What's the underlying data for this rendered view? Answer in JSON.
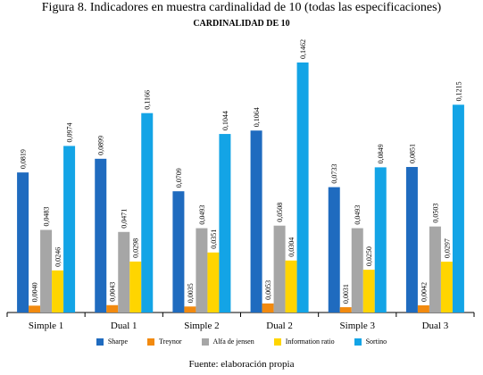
{
  "figure_title": "Figura 8. Indicadores en muestra cardinalidad de 10 (todas las especificaciones)",
  "source_note": "Fuente: elaboración propia",
  "colors": {
    "Sharpe": "#1f6bbf",
    "Treynor": "#f28a0f",
    "Alfa de jensen": "#a6a6a6",
    "Information ratio": "#ffd500",
    "Sortino": "#13a4e6"
  },
  "chart_data": {
    "type": "bar",
    "title": "CARDINALIDAD DE 10",
    "xlabel": "",
    "ylabel": "",
    "ylim": [
      0,
      0.1462
    ],
    "grid": false,
    "legend_position": "bottom",
    "categories": [
      "Simple 1",
      "Dual 1",
      "Simple 2",
      "Dual 2",
      "Simple 3",
      "Dual 3"
    ],
    "series": [
      {
        "name": "Sharpe",
        "values": [
          0.0819,
          0.0899,
          0.0709,
          0.1064,
          0.0733,
          0.0851
        ],
        "labels": [
          "0,0819",
          "0,0899",
          "0,0709",
          "0,1064",
          "0,0733",
          "0,0851"
        ]
      },
      {
        "name": "Treynor",
        "values": [
          0.004,
          0.0043,
          0.0035,
          0.0053,
          0.0031,
          0.0042
        ],
        "labels": [
          "0,0040",
          "0,0043",
          "0,0035",
          "0,0053",
          "0,0031",
          "0,0042"
        ]
      },
      {
        "name": "Alfa de jensen",
        "values": [
          0.0483,
          0.0471,
          0.0493,
          0.0508,
          0.0493,
          0.0503
        ],
        "labels": [
          "0,0483",
          "0,0471",
          "0,0493",
          "0,0508",
          "0,0493",
          "0,0503"
        ]
      },
      {
        "name": "Information ratio",
        "values": [
          0.0246,
          0.0298,
          0.0351,
          0.0304,
          0.025,
          0.0297
        ],
        "labels": [
          "0,0246",
          "0,0298",
          "0,0351",
          "0,0304",
          "0,0250",
          "0,0297"
        ]
      },
      {
        "name": "Sortino",
        "values": [
          0.0974,
          0.1166,
          0.1044,
          0.1462,
          0.0849,
          0.1215
        ],
        "labels": [
          "0,0974",
          "0,1166",
          "0,1044",
          "0,1462",
          "0,0849",
          "0,1215"
        ]
      }
    ]
  }
}
